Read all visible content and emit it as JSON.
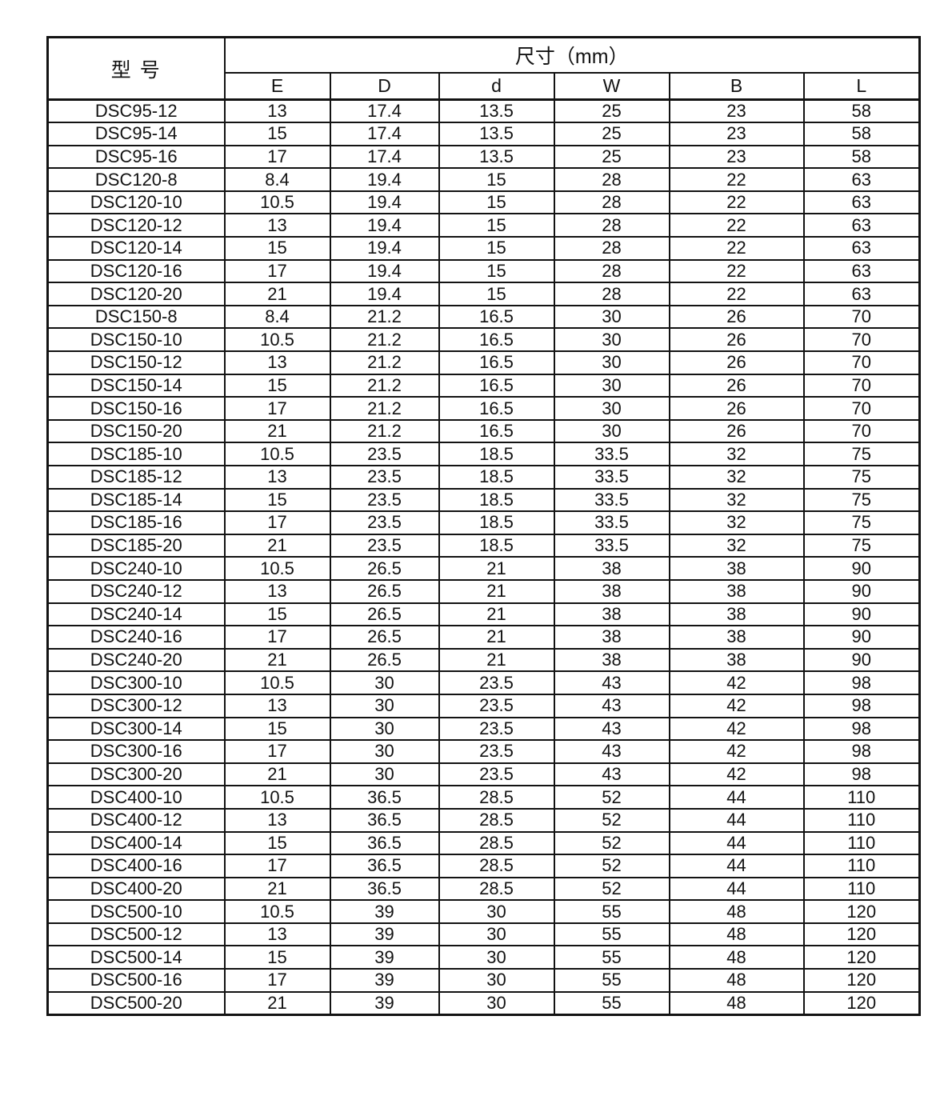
{
  "table": {
    "model_header": "型 号",
    "dim_header": "尺寸（mm）",
    "columns": [
      "E",
      "D",
      "d",
      "W",
      "B",
      "L"
    ],
    "rows": [
      {
        "model": "DSC95-12",
        "values": [
          "13",
          "17.4",
          "13.5",
          "25",
          "23",
          "58"
        ]
      },
      {
        "model": "DSC95-14",
        "values": [
          "15",
          "17.4",
          "13.5",
          "25",
          "23",
          "58"
        ]
      },
      {
        "model": "DSC95-16",
        "values": [
          "17",
          "17.4",
          "13.5",
          "25",
          "23",
          "58"
        ]
      },
      {
        "model": "DSC120-8",
        "values": [
          "8.4",
          "19.4",
          "15",
          "28",
          "22",
          "63"
        ]
      },
      {
        "model": "DSC120-10",
        "values": [
          "10.5",
          "19.4",
          "15",
          "28",
          "22",
          "63"
        ]
      },
      {
        "model": "DSC120-12",
        "values": [
          "13",
          "19.4",
          "15",
          "28",
          "22",
          "63"
        ]
      },
      {
        "model": "DSC120-14",
        "values": [
          "15",
          "19.4",
          "15",
          "28",
          "22",
          "63"
        ]
      },
      {
        "model": "DSC120-16",
        "values": [
          "17",
          "19.4",
          "15",
          "28",
          "22",
          "63"
        ]
      },
      {
        "model": "DSC120-20",
        "values": [
          "21",
          "19.4",
          "15",
          "28",
          "22",
          "63"
        ]
      },
      {
        "model": "DSC150-8",
        "values": [
          "8.4",
          "21.2",
          "16.5",
          "30",
          "26",
          "70"
        ]
      },
      {
        "model": "DSC150-10",
        "values": [
          "10.5",
          "21.2",
          "16.5",
          "30",
          "26",
          "70"
        ]
      },
      {
        "model": "DSC150-12",
        "values": [
          "13",
          "21.2",
          "16.5",
          "30",
          "26",
          "70"
        ]
      },
      {
        "model": "DSC150-14",
        "values": [
          "15",
          "21.2",
          "16.5",
          "30",
          "26",
          "70"
        ]
      },
      {
        "model": "DSC150-16",
        "values": [
          "17",
          "21.2",
          "16.5",
          "30",
          "26",
          "70"
        ]
      },
      {
        "model": "DSC150-20",
        "values": [
          "21",
          "21.2",
          "16.5",
          "30",
          "26",
          "70"
        ]
      },
      {
        "model": "DSC185-10",
        "values": [
          "10.5",
          "23.5",
          "18.5",
          "33.5",
          "32",
          "75"
        ]
      },
      {
        "model": "DSC185-12",
        "values": [
          "13",
          "23.5",
          "18.5",
          "33.5",
          "32",
          "75"
        ]
      },
      {
        "model": "DSC185-14",
        "values": [
          "15",
          "23.5",
          "18.5",
          "33.5",
          "32",
          "75"
        ]
      },
      {
        "model": "DSC185-16",
        "values": [
          "17",
          "23.5",
          "18.5",
          "33.5",
          "32",
          "75"
        ]
      },
      {
        "model": "DSC185-20",
        "values": [
          "21",
          "23.5",
          "18.5",
          "33.5",
          "32",
          "75"
        ]
      },
      {
        "model": "DSC240-10",
        "values": [
          "10.5",
          "26.5",
          "21",
          "38",
          "38",
          "90"
        ]
      },
      {
        "model": "DSC240-12",
        "values": [
          "13",
          "26.5",
          "21",
          "38",
          "38",
          "90"
        ]
      },
      {
        "model": "DSC240-14",
        "values": [
          "15",
          "26.5",
          "21",
          "38",
          "38",
          "90"
        ]
      },
      {
        "model": "DSC240-16",
        "values": [
          "17",
          "26.5",
          "21",
          "38",
          "38",
          "90"
        ]
      },
      {
        "model": "DSC240-20",
        "values": [
          "21",
          "26.5",
          "21",
          "38",
          "38",
          "90"
        ]
      },
      {
        "model": "DSC300-10",
        "values": [
          "10.5",
          "30",
          "23.5",
          "43",
          "42",
          "98"
        ]
      },
      {
        "model": "DSC300-12",
        "values": [
          "13",
          "30",
          "23.5",
          "43",
          "42",
          "98"
        ]
      },
      {
        "model": "DSC300-14",
        "values": [
          "15",
          "30",
          "23.5",
          "43",
          "42",
          "98"
        ]
      },
      {
        "model": "DSC300-16",
        "values": [
          "17",
          "30",
          "23.5",
          "43",
          "42",
          "98"
        ]
      },
      {
        "model": "DSC300-20",
        "values": [
          "21",
          "30",
          "23.5",
          "43",
          "42",
          "98"
        ]
      },
      {
        "model": "DSC400-10",
        "values": [
          "10.5",
          "36.5",
          "28.5",
          "52",
          "44",
          "110"
        ]
      },
      {
        "model": "DSC400-12",
        "values": [
          "13",
          "36.5",
          "28.5",
          "52",
          "44",
          "110"
        ]
      },
      {
        "model": "DSC400-14",
        "values": [
          "15",
          "36.5",
          "28.5",
          "52",
          "44",
          "110"
        ]
      },
      {
        "model": "DSC400-16",
        "values": [
          "17",
          "36.5",
          "28.5",
          "52",
          "44",
          "110"
        ]
      },
      {
        "model": "DSC400-20",
        "values": [
          "21",
          "36.5",
          "28.5",
          "52",
          "44",
          "110"
        ]
      },
      {
        "model": "DSC500-10",
        "values": [
          "10.5",
          "39",
          "30",
          "55",
          "48",
          "120"
        ]
      },
      {
        "model": "DSC500-12",
        "values": [
          "13",
          "39",
          "30",
          "55",
          "48",
          "120"
        ]
      },
      {
        "model": "DSC500-14",
        "values": [
          "15",
          "39",
          "30",
          "55",
          "48",
          "120"
        ]
      },
      {
        "model": "DSC500-16",
        "values": [
          "17",
          "39",
          "30",
          "55",
          "48",
          "120"
        ]
      },
      {
        "model": "DSC500-20",
        "values": [
          "21",
          "39",
          "30",
          "55",
          "48",
          "120"
        ]
      }
    ]
  }
}
